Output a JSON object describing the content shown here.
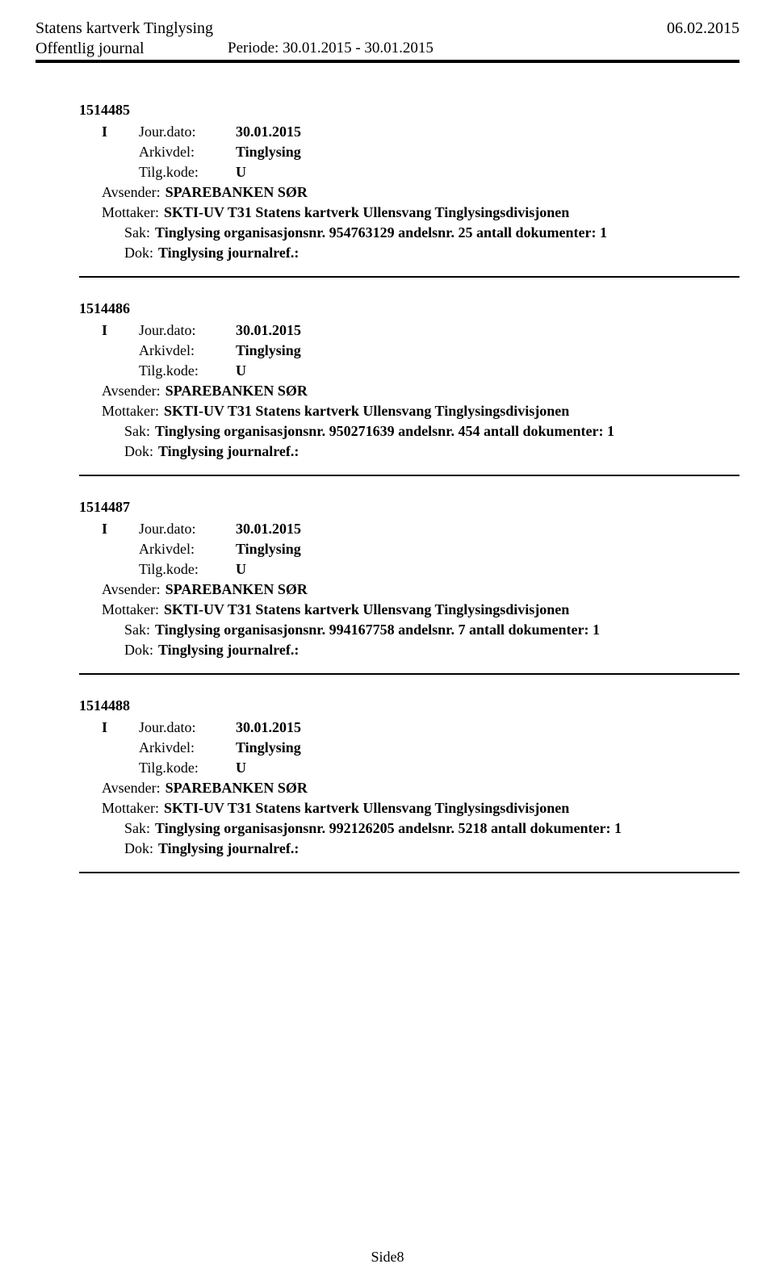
{
  "header": {
    "org_title": "Statens kartverk Tinglysing",
    "date": "06.02.2015",
    "subtitle": "Offentlig journal",
    "period_label": "Periode:",
    "period_value": "30.01.2015 - 30.01.2015"
  },
  "labels": {
    "jour_dato": "Jour.dato:",
    "arkivdel": "Arkivdel:",
    "tilgkode": "Tilg.kode:",
    "avsender": "Avsender:",
    "mottaker": "Mottaker:",
    "sak": "Sak:",
    "dok": "Dok:"
  },
  "common": {
    "type": "I",
    "jour_dato_val": "30.01.2015",
    "arkivdel_val": "Tinglysing",
    "tilgkode_val": "U",
    "avsender_val": "SPAREBANKEN SØR",
    "mottaker_val": "SKTI-UV T31 Statens kartverk Ullensvang Tinglysingsdivisjonen",
    "dok_val": "Tinglysing journalref.:"
  },
  "entries": [
    {
      "id": "1514485",
      "sak": "Tinglysing organisasjonsnr. 954763129 andelsnr. 25 antall dokumenter: 1"
    },
    {
      "id": "1514486",
      "sak": "Tinglysing organisasjonsnr. 950271639 andelsnr. 454 antall dokumenter: 1"
    },
    {
      "id": "1514487",
      "sak": "Tinglysing organisasjonsnr. 994167758 andelsnr. 7 antall dokumenter: 1"
    },
    {
      "id": "1514488",
      "sak": "Tinglysing organisasjonsnr. 992126205 andelsnr. 5218 antall dokumenter: 1"
    }
  ],
  "footer": {
    "page": "Side8"
  }
}
